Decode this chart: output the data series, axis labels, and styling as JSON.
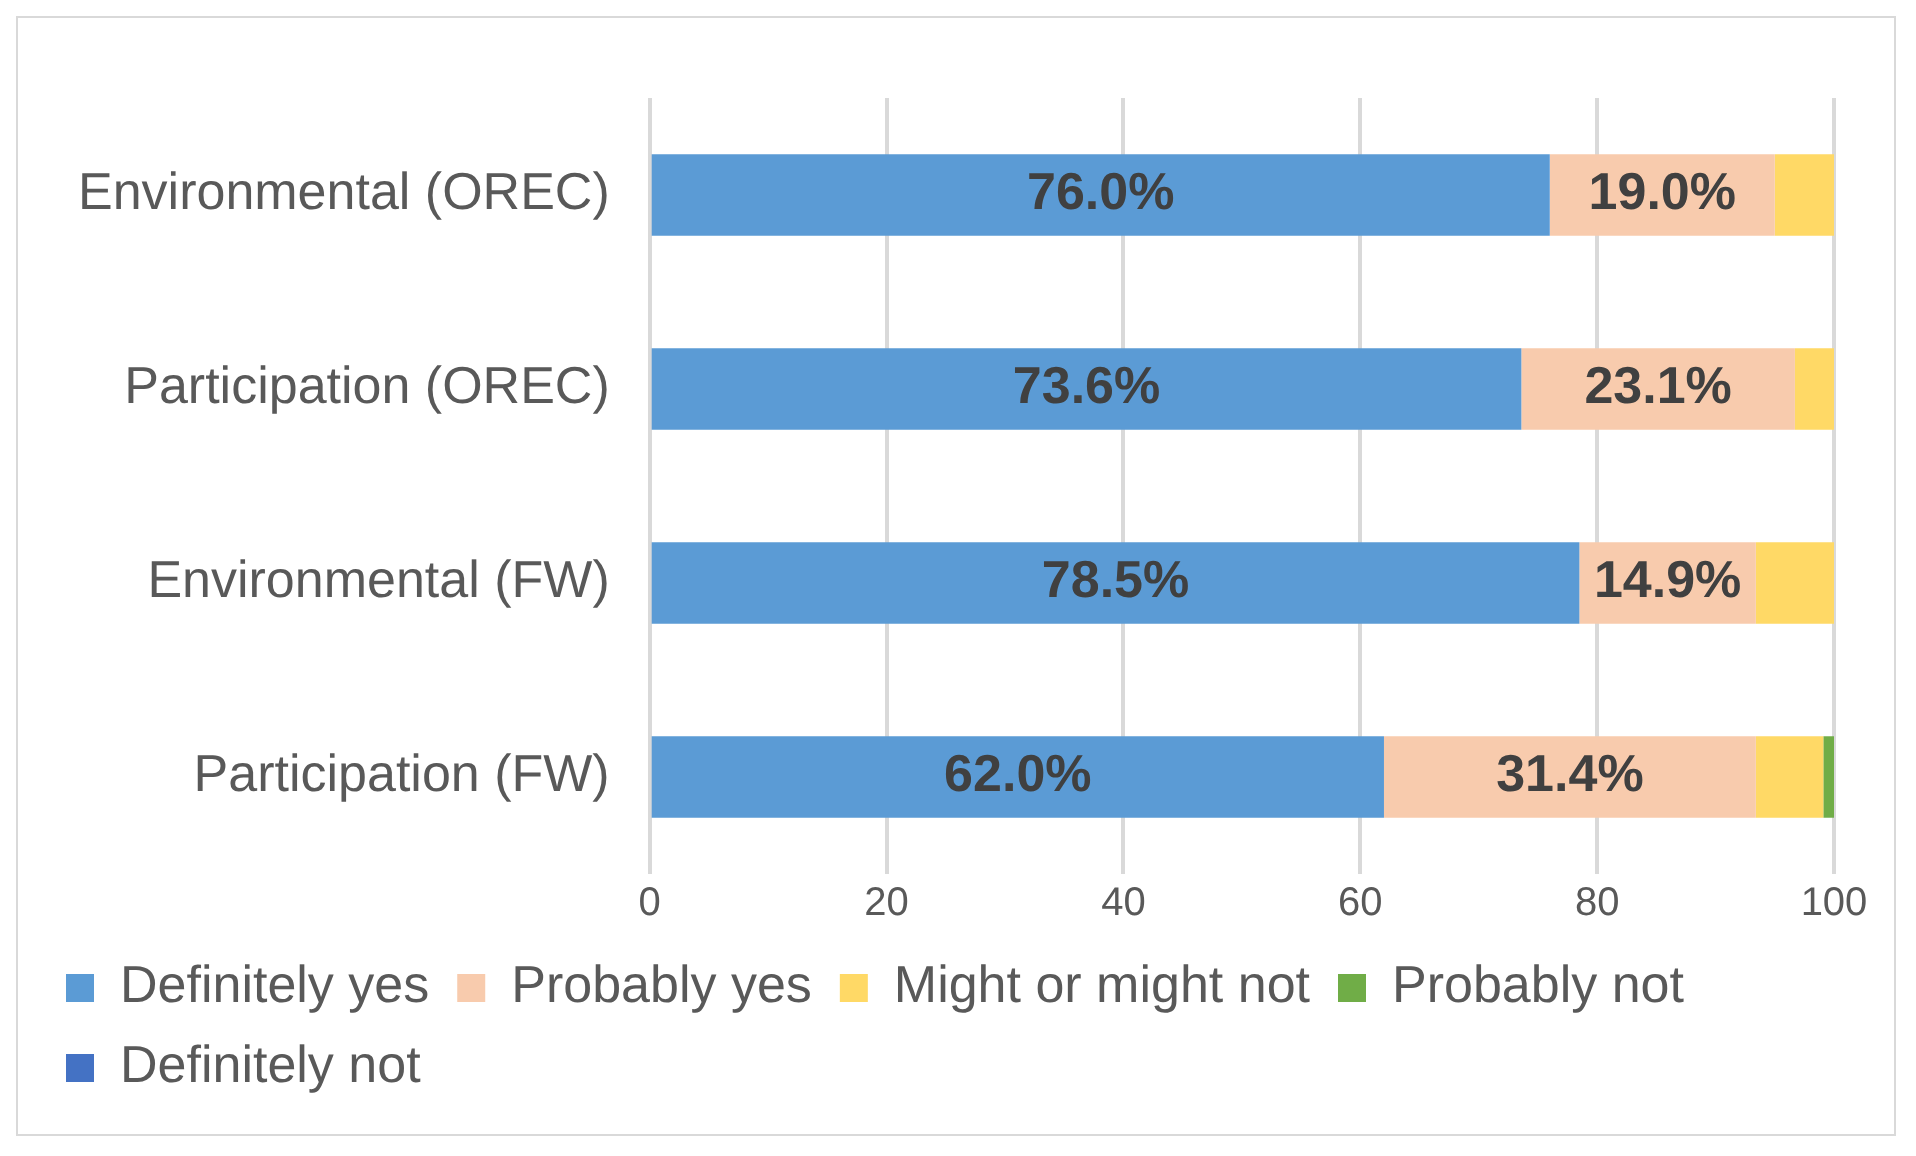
{
  "chart_data": {
    "type": "bar",
    "orientation": "horizontal",
    "stacked": true,
    "categories": [
      "Environmental (OREC)",
      "Participation (OREC)",
      "Environmental (FW)",
      "Participation (FW)"
    ],
    "series": [
      {
        "name": "Definitely yes",
        "color": "#5b9bd5",
        "values": [
          76.0,
          73.6,
          78.5,
          62.0
        ],
        "value_labels": [
          "76.0%",
          "73.6%",
          "78.5%",
          "62.0%"
        ]
      },
      {
        "name": "Probably yes",
        "color": "#f8cbad",
        "values": [
          19.0,
          23.1,
          14.9,
          31.4
        ],
        "value_labels": [
          "19.0%",
          "23.1%",
          "14.9%",
          "31.4%"
        ]
      },
      {
        "name": "Might or might not",
        "color": "#ffd966",
        "values": [
          5.0,
          3.3,
          6.6,
          5.7
        ]
      },
      {
        "name": "Probably not",
        "color": "#70ad47",
        "values": [
          0,
          0,
          0,
          0.9
        ]
      },
      {
        "name": "Definitely not",
        "color": "#4472c4",
        "values": [
          0,
          0,
          0,
          0
        ]
      }
    ],
    "xlim": [
      0,
      100
    ],
    "xticks": [
      0,
      20,
      40,
      60,
      80,
      100
    ],
    "grid": "x",
    "legend": "bottom"
  }
}
